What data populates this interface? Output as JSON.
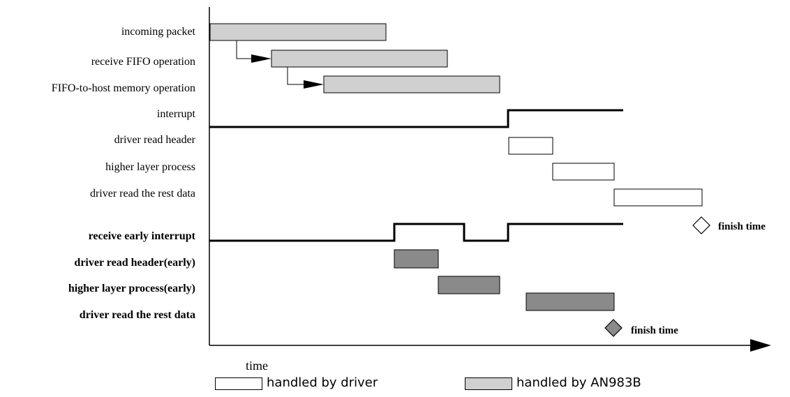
{
  "rows": [
    {
      "label": "incoming packet",
      "bold": false
    },
    {
      "label": "receive FIFO operation",
      "bold": false
    },
    {
      "label": "FIFO-to-host memory operation",
      "bold": false
    },
    {
      "label": "interrupt",
      "bold": false
    },
    {
      "label": "driver read header",
      "bold": false
    },
    {
      "label": "higher layer process",
      "bold": false
    },
    {
      "label": "driver read the rest data",
      "bold": false
    },
    {
      "label": "receive early interrupt",
      "bold": true
    },
    {
      "label": "driver read header(early)",
      "bold": true
    },
    {
      "label": "higher layer process(early)",
      "bold": true
    },
    {
      "label": "driver read the rest data",
      "bold": true
    }
  ],
  "finish_labels": [
    "finish time",
    "finish time"
  ],
  "axis_label": "time",
  "legend": [
    {
      "label": "handled by driver",
      "fill": "#ffffff"
    },
    {
      "label": "handled by AN983B",
      "fill": "#d0d0d0"
    }
  ],
  "colors": {
    "light_gray": "#d0d0d0",
    "dark_gray": "#8a8a8a",
    "white": "#ffffff",
    "line": "#000000"
  }
}
